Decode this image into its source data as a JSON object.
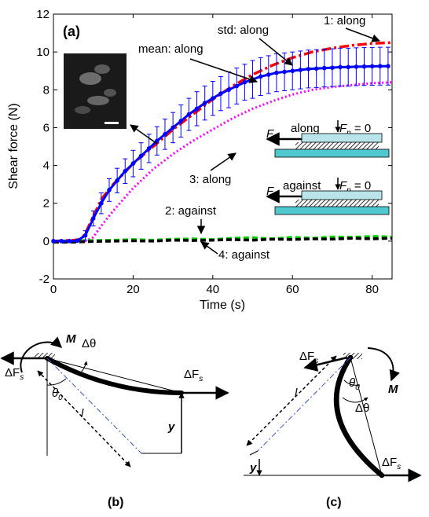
{
  "chart_data": {
    "type": "line",
    "panel_label": "(a)",
    "xlabel": "Time (s)",
    "ylabel": "Shear force (N)",
    "xlim": [
      0,
      85
    ],
    "ylim": [
      -2,
      12
    ],
    "x_ticks": [
      0,
      20,
      40,
      60,
      80
    ],
    "y_ticks": [
      -2,
      0,
      2,
      4,
      6,
      8,
      10,
      12
    ],
    "grid": false,
    "series": [
      {
        "name": "1: along",
        "color": "#ff0000",
        "style": "dash-dot",
        "x": [
          0,
          5,
          7,
          8,
          10,
          12,
          15,
          20,
          25,
          30,
          35,
          40,
          45,
          50,
          55,
          60,
          65,
          70,
          75,
          80,
          85
        ],
        "y": [
          0,
          0.05,
          0.1,
          0.4,
          1.3,
          2.2,
          3.0,
          4.1,
          5.0,
          5.9,
          6.7,
          7.5,
          8.2,
          8.8,
          9.3,
          9.7,
          10.0,
          10.2,
          10.35,
          10.45,
          10.5
        ]
      },
      {
        "name": "mean: along",
        "color": "#0000ff",
        "style": "solid-markers",
        "x": [
          0,
          2,
          4,
          6,
          8,
          10,
          12,
          14,
          16,
          18,
          20,
          22,
          24,
          26,
          28,
          30,
          32,
          34,
          36,
          38,
          40,
          42,
          44,
          46,
          48,
          50,
          52,
          54,
          56,
          58,
          60,
          62,
          64,
          66,
          68,
          70,
          72,
          74,
          76,
          78,
          80,
          82,
          84
        ],
        "y": [
          0,
          0,
          0,
          0.02,
          0.3,
          1.2,
          2.0,
          2.7,
          3.2,
          3.7,
          4.1,
          4.5,
          4.9,
          5.3,
          5.65,
          6.0,
          6.35,
          6.7,
          7.0,
          7.3,
          7.55,
          7.8,
          8.0,
          8.2,
          8.4,
          8.55,
          8.7,
          8.8,
          8.9,
          8.95,
          9.0,
          9.05,
          9.1,
          9.12,
          9.15,
          9.17,
          9.2,
          9.2,
          9.22,
          9.23,
          9.24,
          9.25,
          9.25
        ],
        "error": [
          0,
          0,
          0,
          0,
          0.25,
          0.4,
          0.55,
          0.6,
          0.65,
          0.65,
          0.7,
          0.7,
          0.75,
          0.75,
          0.8,
          0.8,
          0.85,
          0.85,
          0.9,
          0.9,
          0.9,
          0.9,
          0.95,
          0.95,
          0.95,
          1.0,
          1.0,
          1.0,
          1.0,
          1.0,
          1.0,
          1.0,
          1.0,
          1.0,
          1.0,
          1.0,
          1.0,
          1.0,
          1.0,
          1.0,
          1.0,
          1.0,
          1.0
        ]
      },
      {
        "name": "3: along",
        "color": "#ff00ff",
        "style": "dotted",
        "x": [
          0,
          8,
          10,
          12,
          15,
          20,
          25,
          30,
          35,
          40,
          45,
          50,
          55,
          60,
          65,
          70,
          75,
          80,
          85
        ],
        "y": [
          0,
          0,
          0.2,
          0.8,
          1.6,
          2.8,
          3.8,
          4.6,
          5.3,
          5.9,
          6.5,
          7.0,
          7.4,
          7.75,
          8.0,
          8.15,
          8.25,
          8.35,
          8.4
        ]
      },
      {
        "name": "2: against",
        "color": "#00cc00",
        "style": "dashed",
        "x": [
          0,
          5,
          10,
          15,
          20,
          25,
          30,
          35,
          40,
          45,
          50,
          55,
          60,
          65,
          70,
          75,
          80,
          85
        ],
        "y": [
          0,
          0.02,
          0.03,
          0.05,
          0.08,
          0.05,
          0.1,
          0.12,
          0.08,
          0.15,
          0.18,
          0.12,
          0.2,
          0.15,
          0.22,
          0.2,
          0.25,
          0.22
        ]
      },
      {
        "name": "4: against",
        "color": "#000000",
        "style": "dashed",
        "x": [
          0,
          5,
          10,
          15,
          20,
          25,
          30,
          35,
          40,
          45,
          50,
          55,
          60,
          65,
          70,
          75,
          80,
          85
        ],
        "y": [
          -0.05,
          -0.05,
          -0.02,
          0.0,
          0.02,
          0.0,
          0.05,
          0.03,
          0.05,
          0.08,
          0.05,
          0.1,
          0.08,
          0.12,
          0.1,
          0.15,
          0.12,
          0.15
        ]
      }
    ],
    "annotations": {
      "std_label": "std: along",
      "s1": "1: along",
      "mean": "mean: along",
      "s3": "3: along",
      "s2": "2: against",
      "s4": "4: against"
    },
    "inset": {
      "fs": "F",
      "fs_sub": "s",
      "fn": "F",
      "fn_sub": "n",
      "fn_eq": " = 0",
      "along": "along",
      "against": "against"
    }
  },
  "diagrams": {
    "b": {
      "label": "(b)",
      "moment": "M",
      "dfs": "ΔF",
      "dfs_sub": "s",
      "dtheta": "Δθ",
      "theta0": "θ",
      "theta0_sub": "0",
      "length": "l",
      "y": "y"
    },
    "c": {
      "label": "(c)",
      "moment": "M",
      "dfs": "ΔF",
      "dfs_sub": "s",
      "dtheta": "Δθ",
      "theta0": "θ",
      "theta0_sub": "0",
      "length": "l",
      "y": "y"
    }
  }
}
